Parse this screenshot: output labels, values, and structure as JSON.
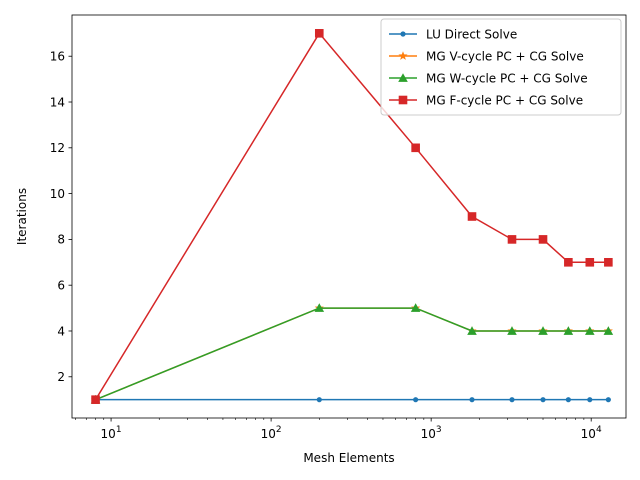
{
  "chart_data": {
    "type": "line",
    "xscale": "log",
    "xlabel": "Mesh Elements",
    "ylabel": "Iterations",
    "xlim": [
      5.7,
      16500
    ],
    "ylim": [
      0.2,
      17.8
    ],
    "x_ticks": [
      10,
      100,
      1000,
      10000
    ],
    "x_tick_labels": [
      {
        "base": "10",
        "exp": "1"
      },
      {
        "base": "10",
        "exp": "2"
      },
      {
        "base": "10",
        "exp": "3"
      },
      {
        "base": "10",
        "exp": "4"
      }
    ],
    "y_ticks": [
      2,
      4,
      6,
      8,
      10,
      12,
      14,
      16
    ],
    "y_tick_labels": [
      "2",
      "4",
      "6",
      "8",
      "10",
      "12",
      "14",
      "16"
    ],
    "legend_position": "top-right",
    "grid": false,
    "x": [
      8,
      200,
      800,
      1800,
      3200,
      5000,
      7200,
      9800,
      12800
    ],
    "series": [
      {
        "name": "LU Direct Solve",
        "color": "#1f77b4",
        "marker": "point",
        "values": [
          1,
          1,
          1,
          1,
          1,
          1,
          1,
          1,
          1
        ]
      },
      {
        "name": "MG V-cycle PC + CG Solve",
        "color": "#ff7f0e",
        "marker": "star",
        "values": [
          1,
          5,
          5,
          4,
          4,
          4,
          4,
          4,
          4
        ]
      },
      {
        "name": "MG W-cycle PC + CG Solve",
        "color": "#2ca02c",
        "marker": "triangle",
        "values": [
          1,
          5,
          5,
          4,
          4,
          4,
          4,
          4,
          4
        ]
      },
      {
        "name": "MG F-cycle PC + CG Solve",
        "color": "#d62728",
        "marker": "square",
        "values": [
          1,
          17,
          12,
          9,
          8,
          8,
          7,
          7,
          7
        ]
      }
    ]
  }
}
